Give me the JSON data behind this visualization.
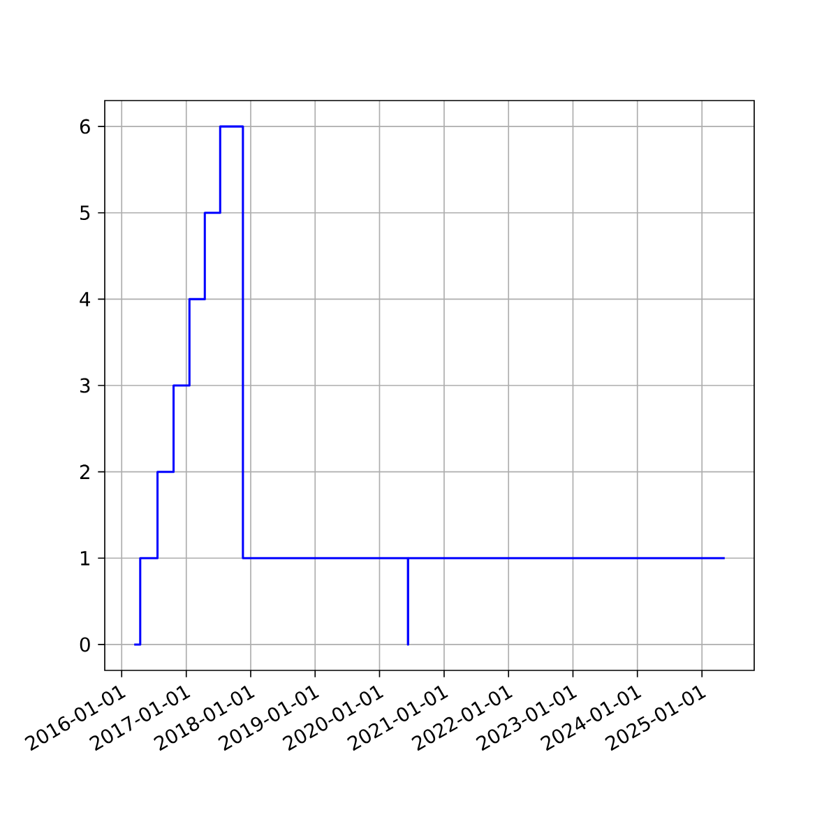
{
  "chart_data": {
    "type": "step",
    "x": [
      "2016-03-12",
      "2016-04-15",
      "2016-07-22",
      "2016-10-21",
      "2017-01-19",
      "2017-04-16",
      "2017-07-12",
      "2017-11-18",
      "2020-06-10",
      "2020-06-11",
      "2025-05-10"
    ],
    "values": [
      0,
      1,
      2,
      3,
      4,
      5,
      6,
      1,
      0,
      1,
      1
    ],
    "color": "#0000ff",
    "xlim": [
      "2015-09-27",
      "2025-10-24"
    ],
    "ylim": [
      -0.3,
      6.3
    ],
    "xticks": [
      "2016-01-01",
      "2017-01-01",
      "2018-01-01",
      "2019-01-01",
      "2020-01-01",
      "2021-01-01",
      "2022-01-01",
      "2023-01-01",
      "2024-01-01",
      "2025-01-01"
    ],
    "yticks": [
      0,
      1,
      2,
      3,
      4,
      5,
      6
    ],
    "grid": true
  }
}
